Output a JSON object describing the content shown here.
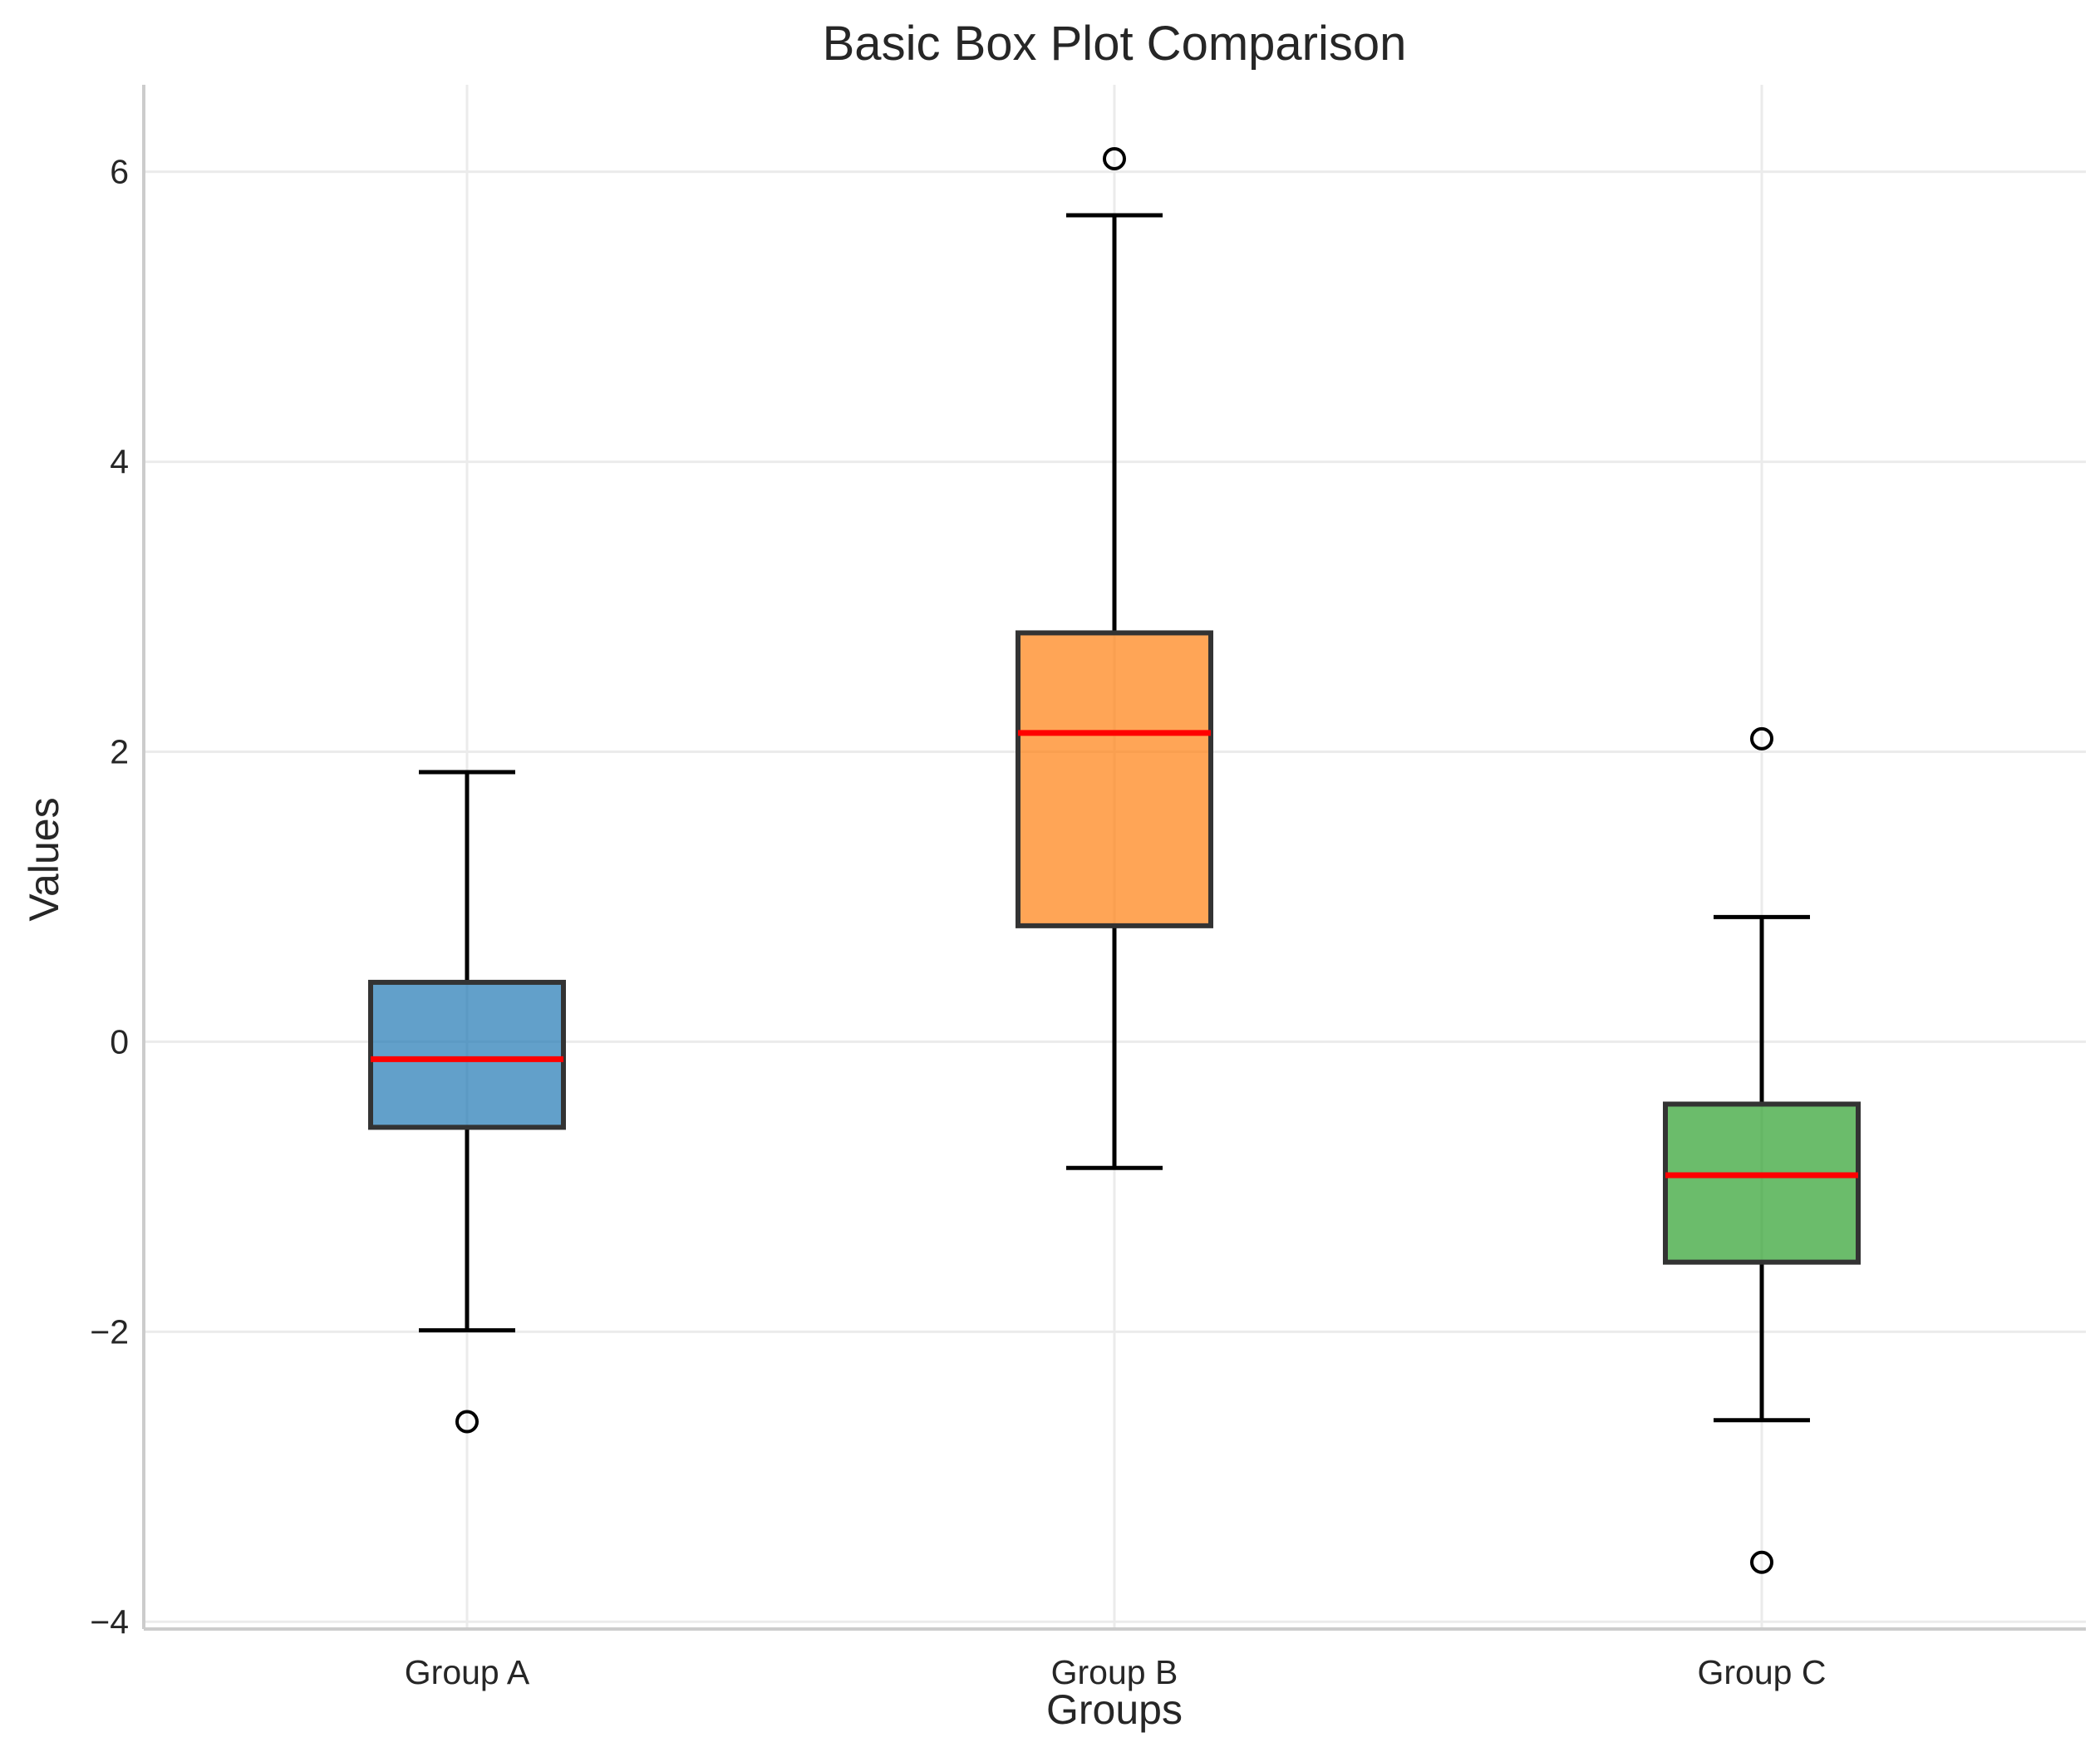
{
  "chart_data": {
    "type": "box",
    "title": "Basic Box Plot Comparison",
    "xlabel": "Groups",
    "ylabel": "Values",
    "ylim": [
      -4.05,
      6.6
    ],
    "yticks": [
      -4,
      -2,
      0,
      2,
      4,
      6
    ],
    "ytick_labels": [
      "−4",
      "−2",
      "0",
      "2",
      "4",
      "6"
    ],
    "grid": true,
    "median_color": "#ff0000",
    "box_edge_color": "#333333",
    "categories": [
      "Group A",
      "Group B",
      "Group C"
    ],
    "boxes": [
      {
        "name": "Group A",
        "whisker_low": -1.99,
        "q1": -0.59,
        "median": -0.12,
        "q3": 0.41,
        "whisker_high": 1.86,
        "outliers": [
          -2.62
        ],
        "color": "#1f77b4"
      },
      {
        "name": "Group B",
        "whisker_low": -0.87,
        "q1": 0.8,
        "median": 2.13,
        "q3": 2.82,
        "whisker_high": 5.7,
        "outliers": [
          6.09
        ],
        "color": "#ff7f0e"
      },
      {
        "name": "Group C",
        "whisker_low": -2.61,
        "q1": -1.52,
        "median": -0.92,
        "q3": -0.43,
        "whisker_high": 0.86,
        "outliers": [
          2.09,
          -3.59
        ],
        "color": "#2ca02c"
      }
    ]
  }
}
